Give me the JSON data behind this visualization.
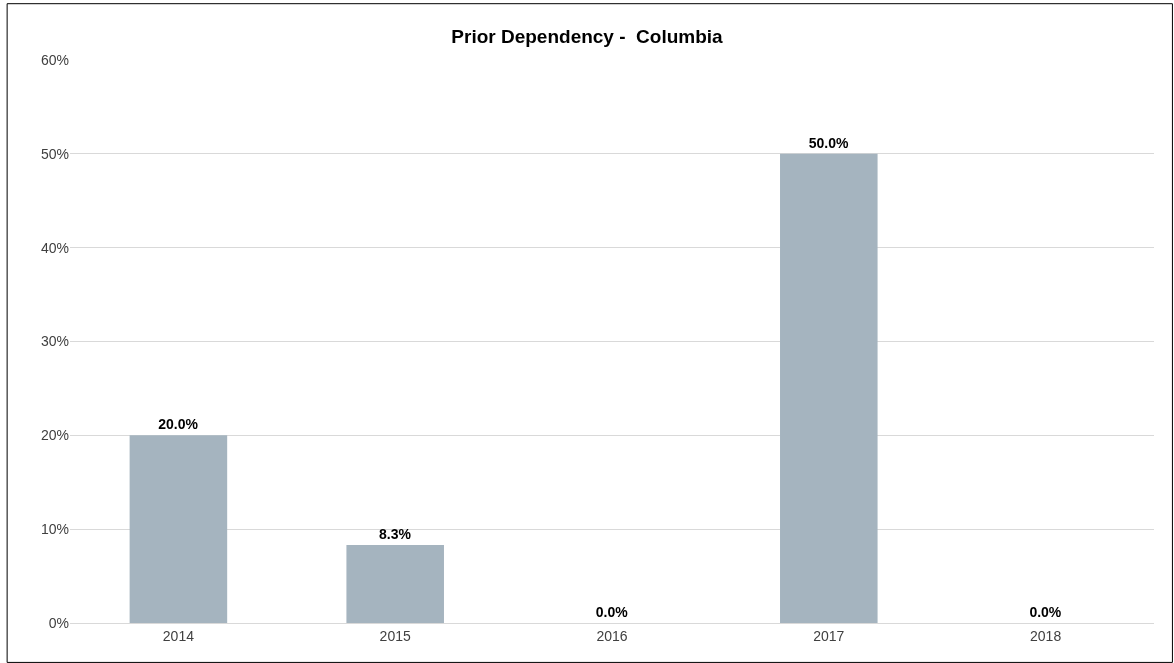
{
  "chart_data": {
    "type": "bar",
    "title": "Prior Dependency -  Columbia",
    "categories": [
      "2014",
      "2015",
      "2016",
      "2017",
      "2018"
    ],
    "values": [
      20,
      8.3,
      0,
      50,
      0
    ],
    "value_labels": [
      "20.0%",
      "8.3%",
      "0.0%",
      "50.0%",
      "0.0%"
    ],
    "color": "#a5b4bf",
    "ylim": [
      0,
      60
    ],
    "yticks": [
      {
        "value": 0,
        "label": "0%"
      },
      {
        "value": 10,
        "label": "10%"
      },
      {
        "value": 20,
        "label": "20%"
      },
      {
        "value": 30,
        "label": "30%"
      },
      {
        "value": 40,
        "label": "40%"
      },
      {
        "value": 50,
        "label": "50%"
      },
      {
        "value": 60,
        "label": "60%"
      }
    ],
    "grid": "y"
  }
}
